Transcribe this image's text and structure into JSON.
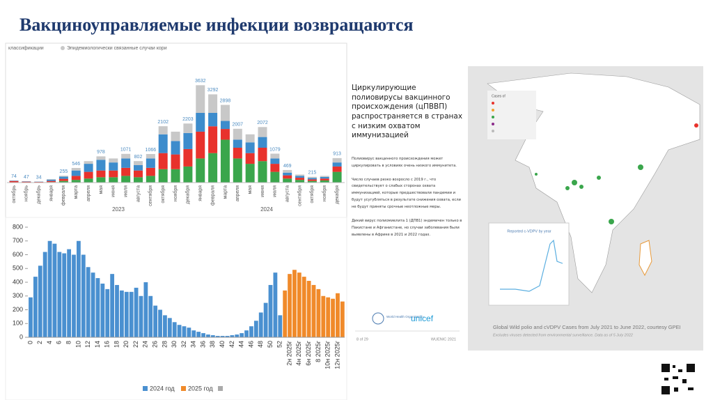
{
  "title": "Вакциноуправляемые инфекции возвращаются",
  "chart_data": [
    {
      "type": "stacked-bar",
      "legend_fragment": "классификации",
      "categories": [
        "октябрь",
        "ноябрь",
        "декабрь",
        "января",
        "февраля",
        "марта",
        "апреля",
        "мая",
        "июня",
        "июля",
        "августа",
        "сентября",
        "октября",
        "ноября",
        "декабря",
        "января",
        "февраля",
        "марта",
        "апреля",
        "мая",
        "июня",
        "июля",
        "августа",
        "сентября",
        "октября",
        "ноября",
        "декабря"
      ],
      "years": [
        "2023",
        "2024"
      ],
      "ylim": [
        0,
        3900
      ],
      "series": [
        {
          "color": "#3aa64c",
          "values": [
            0,
            0,
            0,
            20,
            60,
            100,
            150,
            200,
            200,
            250,
            200,
            250,
            500,
            500,
            600,
            900,
            1100,
            1600,
            900,
            700,
            800,
            400,
            150,
            100,
            60,
            80,
            400
          ]
        },
        {
          "color": "#e8322c",
          "values": [
            60,
            35,
            25,
            40,
            80,
            150,
            250,
            250,
            250,
            300,
            250,
            300,
            600,
            550,
            650,
            1000,
            1000,
            400,
            400,
            400,
            500,
            300,
            120,
            80,
            60,
            70,
            200
          ]
        },
        {
          "color": "#3d8ccc",
          "values": [
            14,
            12,
            9,
            50,
            80,
            200,
            300,
            400,
            300,
            350,
            200,
            350,
            700,
            500,
            600,
            700,
            500,
            300,
            300,
            400,
            400,
            200,
            100,
            70,
            50,
            60,
            150
          ]
        },
        {
          "name": "Эпидемиологически связанные случаи кори",
          "color": "#c8c8c8",
          "values": [
            0,
            0,
            0,
            20,
            35,
            96,
            100,
            128,
            150,
            171,
            152,
            166,
            302,
            350,
            353,
            1032,
            692,
            598,
            407,
            300,
            372,
            179,
            99,
            50,
            45,
            40,
            163
          ]
        }
      ],
      "totals": [
        74,
        47,
        34,
        null,
        255,
        546,
        null,
        978,
        null,
        1071,
        802,
        1066,
        2102,
        null,
        2203,
        3632,
        3292,
        2898,
        2007,
        null,
        2072,
        1079,
        469,
        null,
        215,
        null,
        913
      ]
    },
    {
      "type": "bar",
      "categories": [
        "0",
        null,
        "2",
        null,
        "4",
        null,
        "6",
        null,
        "8",
        null,
        "10",
        null,
        "12",
        null,
        "14",
        null,
        "16",
        null,
        "18",
        null,
        "20",
        null,
        "22",
        null,
        "24",
        null,
        "26",
        null,
        "28",
        null,
        "30",
        null,
        "32",
        null,
        "34",
        null,
        "36",
        null,
        "38",
        null,
        "40",
        null,
        "42",
        null,
        "44",
        null,
        "46",
        null,
        "48",
        null,
        "50",
        null,
        "52",
        null,
        "2н 2025г",
        null,
        "4н 2025г",
        null,
        "6н 2025г",
        null,
        "8 2025г",
        null,
        "10н 2025г",
        null,
        "12н 2025г",
        null
      ],
      "ylim": [
        0,
        800
      ],
      "yticks": [
        0,
        100,
        200,
        300,
        400,
        500,
        600,
        700,
        800
      ],
      "series": [
        {
          "name": "2024 год",
          "color": "#4a90d0",
          "values": [
            290,
            440,
            520,
            620,
            700,
            680,
            620,
            610,
            640,
            600,
            700,
            600,
            510,
            470,
            430,
            390,
            350,
            460,
            380,
            340,
            330,
            330,
            360,
            300,
            400,
            300,
            230,
            200,
            160,
            140,
            110,
            90,
            80,
            70,
            50,
            40,
            30,
            20,
            15,
            10,
            10,
            10,
            15,
            20,
            30,
            50,
            80,
            120,
            180,
            250,
            380,
            470,
            160,
            null,
            null,
            null,
            null,
            null,
            null,
            null,
            null,
            null,
            null,
            null,
            null,
            null
          ]
        },
        {
          "name": "2025 год",
          "color": "#f08a2a",
          "values": [
            null,
            null,
            null,
            null,
            null,
            null,
            null,
            null,
            null,
            null,
            null,
            null,
            null,
            null,
            null,
            null,
            null,
            null,
            null,
            null,
            null,
            null,
            null,
            null,
            null,
            null,
            null,
            null,
            null,
            null,
            null,
            null,
            null,
            null,
            null,
            null,
            null,
            null,
            null,
            null,
            null,
            null,
            null,
            null,
            null,
            null,
            null,
            null,
            null,
            null,
            null,
            null,
            null,
            340,
            460,
            490,
            470,
            440,
            410,
            380,
            350,
            300,
            290,
            280,
            320,
            260
          ]
        }
      ]
    }
  ],
  "slide": {
    "heading": "Циркулирующие полиовирусы вакцинного происхождения (цПВВП) распространяется в странах с низким охватом иммунизацией",
    "paragraphs": [
      "Полиовирус вакцинного происхождения может циркулировать в условиях очень низкого иммунитета.",
      "Число случаев резко возросло с 2019 г., что свидетельствует о слабых сторонах охвата иммунизацией, которые предшествовали пандемии и будут усугубляться в результате снижения охвата, если не будут приняты срочные неотложные меры.",
      "Дикий вирус полиомиелита 1 (ДПВ1) эндемичен только в Пакистане и Афганистане, но случаи заболевания были выявлены в Африке в 2021 и 2022 годах."
    ],
    "who": "World Health Organization",
    "unicef": "unicef",
    "page": "8 of 29",
    "source": "WUENIC 2021",
    "map_legend_title": "Cases of",
    "inset_title": "Reported c-VDPV by year",
    "caption": "Global Wild polio and cVDPV Cases from July 2021 to June 2022, courtesy GPEI",
    "note": "Excludes viruses detected from environmental surveillance. Data as of 5 July 2022"
  }
}
